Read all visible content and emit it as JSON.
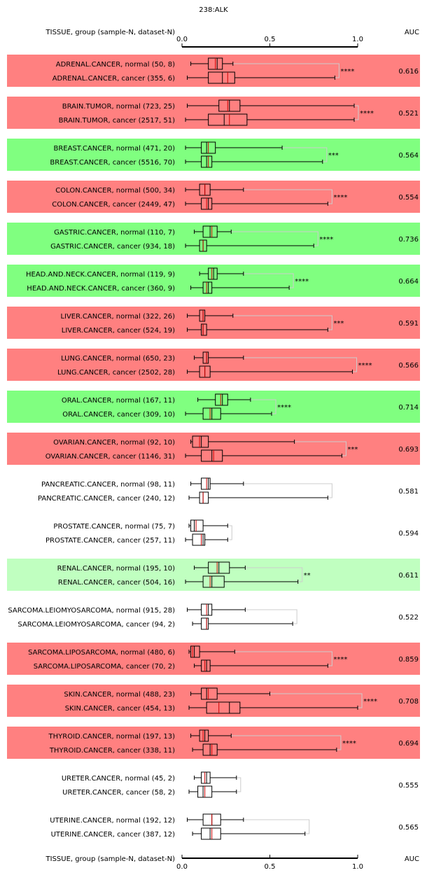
{
  "chart_data": {
    "type": "boxplot",
    "title": "238:ALK",
    "header_label": "TISSUE, group (sample-N, dataset-N)",
    "auc_label": "AUC",
    "x_ticks": [
      0.0,
      0.5,
      1.0
    ],
    "x_tick_labels": [
      "0.0",
      "0.5",
      "1.0"
    ],
    "xlim": [
      0,
      1
    ],
    "colors": {
      "red_panel": "#ff8080",
      "green_panel": "#80ff80",
      "lightgreen_panel": "#c0ffc0",
      "white_panel": "#ffffff",
      "box_fill": "#ffffff",
      "median": "#cc0000",
      "bracket": "#cccccc"
    },
    "groups": [
      {
        "tissue": "ADRENAL.CANCER",
        "color": "red",
        "significance": "****",
        "auc": "0.616",
        "normal": {
          "label": "ADRENAL.CANCER, normal (50, 8)",
          "min": 0.05,
          "q1": 0.15,
          "median": 0.2,
          "q3": 0.23,
          "max": 0.29,
          "mean": 0.19
        },
        "cancer": {
          "label": "ADRENAL.CANCER, cancer (355, 6)",
          "min": 0.03,
          "q1": 0.15,
          "median": 0.23,
          "q3": 0.3,
          "max": 0.87,
          "mean": 0.26
        }
      },
      {
        "tissue": "BRAIN.TUMOR",
        "color": "red",
        "significance": "****",
        "auc": "0.521",
        "normal": {
          "label": "BRAIN.TUMOR, normal (723, 25)",
          "min": 0.03,
          "q1": 0.21,
          "median": 0.27,
          "q3": 0.33,
          "max": 0.98,
          "mean": 0.26
        },
        "cancer": {
          "label": "BRAIN.TUMOR, cancer (2517, 51)",
          "min": 0.02,
          "q1": 0.15,
          "median": 0.24,
          "q3": 0.37,
          "max": 0.98,
          "mean": 0.27
        }
      },
      {
        "tissue": "BREAST.CANCER",
        "color": "green",
        "significance": "***",
        "auc": "0.564",
        "normal": {
          "label": "BREAST.CANCER, normal (471, 20)",
          "min": 0.02,
          "q1": 0.11,
          "median": 0.14,
          "q3": 0.19,
          "max": 0.57,
          "mean": 0.15
        },
        "cancer": {
          "label": "BREAST.CANCER, cancer (5516, 70)",
          "min": 0.02,
          "q1": 0.11,
          "median": 0.14,
          "q3": 0.17,
          "max": 0.8,
          "mean": 0.15
        }
      },
      {
        "tissue": "COLON.CANCER",
        "color": "red",
        "significance": "****",
        "auc": "0.554",
        "normal": {
          "label": "COLON.CANCER, normal (500, 34)",
          "min": 0.02,
          "q1": 0.1,
          "median": 0.13,
          "q3": 0.16,
          "max": 0.35,
          "mean": 0.13
        },
        "cancer": {
          "label": "COLON.CANCER, cancer (2449, 47)",
          "min": 0.02,
          "q1": 0.11,
          "median": 0.15,
          "q3": 0.17,
          "max": 0.83,
          "mean": 0.14
        }
      },
      {
        "tissue": "GASTRIC.CANCER",
        "color": "green",
        "significance": "****",
        "auc": "0.736",
        "normal": {
          "label": "GASTRIC.CANCER, normal (110, 7)",
          "min": 0.07,
          "q1": 0.12,
          "median": 0.16,
          "q3": 0.2,
          "max": 0.28,
          "mean": 0.17
        },
        "cancer": {
          "label": "GASTRIC.CANCER, cancer (934, 18)",
          "min": 0.02,
          "q1": 0.1,
          "median": 0.12,
          "q3": 0.14,
          "max": 0.75,
          "mean": 0.12
        }
      },
      {
        "tissue": "HEAD.AND.NECK.CANCER",
        "color": "green",
        "significance": "****",
        "auc": "0.664",
        "normal": {
          "label": "HEAD.AND.NECK.CANCER, normal (119, 9)",
          "min": 0.1,
          "q1": 0.15,
          "median": 0.18,
          "q3": 0.2,
          "max": 0.35,
          "mean": 0.17
        },
        "cancer": {
          "label": "HEAD.AND.NECK.CANCER, cancer (360, 9)",
          "min": 0.05,
          "q1": 0.12,
          "median": 0.15,
          "q3": 0.17,
          "max": 0.61,
          "mean": 0.14
        }
      },
      {
        "tissue": "LIVER.CANCER",
        "color": "red",
        "significance": "***",
        "auc": "0.591",
        "normal": {
          "label": "LIVER.CANCER, normal (322, 26)",
          "min": 0.03,
          "q1": 0.1,
          "median": 0.12,
          "q3": 0.13,
          "max": 0.29,
          "mean": 0.12
        },
        "cancer": {
          "label": "LIVER.CANCER, cancer (524, 19)",
          "min": 0.03,
          "q1": 0.11,
          "median": 0.12,
          "q3": 0.14,
          "max": 0.83,
          "mean": 0.12
        }
      },
      {
        "tissue": "LUNG.CANCER",
        "color": "red",
        "significance": "****",
        "auc": "0.566",
        "normal": {
          "label": "LUNG.CANCER, normal (650, 23)",
          "min": 0.07,
          "q1": 0.12,
          "median": 0.14,
          "q3": 0.15,
          "max": 0.35,
          "mean": 0.14
        },
        "cancer": {
          "label": "LUNG.CANCER, cancer (2502, 28)",
          "min": 0.03,
          "q1": 0.1,
          "median": 0.13,
          "q3": 0.16,
          "max": 0.97,
          "mean": 0.13
        }
      },
      {
        "tissue": "ORAL.CANCER",
        "color": "green",
        "significance": "****",
        "auc": "0.714",
        "normal": {
          "label": "ORAL.CANCER, normal (167, 11)",
          "min": 0.09,
          "q1": 0.19,
          "median": 0.23,
          "q3": 0.26,
          "max": 0.39,
          "mean": 0.22
        },
        "cancer": {
          "label": "ORAL.CANCER, cancer (309, 10)",
          "min": 0.02,
          "q1": 0.12,
          "median": 0.17,
          "q3": 0.22,
          "max": 0.51,
          "mean": 0.16
        }
      },
      {
        "tissue": "OVARIAN.CANCER",
        "color": "red",
        "significance": "***",
        "auc": "0.693",
        "normal": {
          "label": "OVARIAN.CANCER, normal (92, 10)",
          "min": 0.05,
          "q1": 0.06,
          "median": 0.11,
          "q3": 0.15,
          "max": 0.64,
          "mean": 0.1
        },
        "cancer": {
          "label": "OVARIAN.CANCER, cancer (1146, 31)",
          "min": 0.02,
          "q1": 0.11,
          "median": 0.17,
          "q3": 0.23,
          "max": 0.91,
          "mean": 0.18
        }
      },
      {
        "tissue": "PANCREATIC.CANCER",
        "color": "white",
        "significance": "",
        "auc": "0.581",
        "normal": {
          "label": "PANCREATIC.CANCER, normal (98, 11)",
          "min": 0.05,
          "q1": 0.11,
          "median": 0.15,
          "q3": 0.16,
          "max": 0.35,
          "mean": 0.14
        },
        "cancer": {
          "label": "PANCREATIC.CANCER, cancer (240, 12)",
          "min": 0.04,
          "q1": 0.1,
          "median": 0.12,
          "q3": 0.15,
          "max": 0.83,
          "mean": 0.12
        }
      },
      {
        "tissue": "PROSTATE.CANCER",
        "color": "white",
        "significance": "",
        "auc": "0.594",
        "normal": {
          "label": "PROSTATE.CANCER, normal (75, 7)",
          "min": 0.04,
          "q1": 0.05,
          "median": 0.07,
          "q3": 0.12,
          "max": 0.26,
          "mean": 0.08
        },
        "cancer": {
          "label": "PROSTATE.CANCER, cancer (257, 11)",
          "min": 0.02,
          "q1": 0.06,
          "median": 0.12,
          "q3": 0.13,
          "max": 0.26,
          "mean": 0.11
        }
      },
      {
        "tissue": "RENAL.CANCER",
        "color": "lightgreen",
        "significance": "**",
        "auc": "0.611",
        "normal": {
          "label": "RENAL.CANCER, normal (195, 10)",
          "min": 0.07,
          "q1": 0.15,
          "median": 0.21,
          "q3": 0.27,
          "max": 0.36,
          "mean": 0.2
        },
        "cancer": {
          "label": "RENAL.CANCER, cancer (504, 16)",
          "min": 0.02,
          "q1": 0.12,
          "median": 0.17,
          "q3": 0.24,
          "max": 0.66,
          "mean": 0.16
        }
      },
      {
        "tissue": "SARCOMA.LEIOMYOSARCOMA",
        "color": "white",
        "significance": "",
        "auc": "0.522",
        "normal": {
          "label": "SARCOMA.LEIOMYOSARCOMA, normal (915, 28)",
          "min": 0.03,
          "q1": 0.11,
          "median": 0.15,
          "q3": 0.17,
          "max": 0.36,
          "mean": 0.14
        },
        "cancer": {
          "label": "SARCOMA.LEIOMYOSARCOMA, cancer (94, 2)",
          "min": 0.06,
          "q1": 0.11,
          "median": 0.14,
          "q3": 0.15,
          "max": 0.63,
          "mean": 0.14
        }
      },
      {
        "tissue": "SARCOMA.LIPOSARCOMA",
        "color": "red",
        "significance": "****",
        "auc": "0.859",
        "normal": {
          "label": "SARCOMA.LIPOSARCOMA, normal (480, 6)",
          "min": 0.04,
          "q1": 0.05,
          "median": 0.07,
          "q3": 0.1,
          "max": 0.3,
          "mean": 0.06
        },
        "cancer": {
          "label": "SARCOMA.LIPOSARCOMA, cancer (70, 2)",
          "min": 0.07,
          "q1": 0.11,
          "median": 0.14,
          "q3": 0.16,
          "max": 0.83,
          "mean": 0.13
        }
      },
      {
        "tissue": "SKIN.CANCER",
        "color": "red",
        "significance": "****",
        "auc": "0.708",
        "normal": {
          "label": "SKIN.CANCER, normal (488, 23)",
          "min": 0.05,
          "q1": 0.11,
          "median": 0.14,
          "q3": 0.2,
          "max": 0.5,
          "mean": 0.15
        },
        "cancer": {
          "label": "SKIN.CANCER, cancer (454, 13)",
          "min": 0.04,
          "q1": 0.14,
          "median": 0.27,
          "q3": 0.33,
          "max": 1.0,
          "mean": 0.21
        }
      },
      {
        "tissue": "THYROID.CANCER",
        "color": "red",
        "significance": "****",
        "auc": "0.694",
        "normal": {
          "label": "THYROID.CANCER, normal (197, 13)",
          "min": 0.05,
          "q1": 0.1,
          "median": 0.13,
          "q3": 0.15,
          "max": 0.28,
          "mean": 0.12
        },
        "cancer": {
          "label": "THYROID.CANCER, cancer (338, 11)",
          "min": 0.06,
          "q1": 0.12,
          "median": 0.16,
          "q3": 0.2,
          "max": 0.88,
          "mean": 0.17
        }
      },
      {
        "tissue": "URETER.CANCER",
        "color": "white",
        "significance": "",
        "auc": "0.555",
        "normal": {
          "label": "URETER.CANCER, normal (45, 2)",
          "min": 0.07,
          "q1": 0.11,
          "median": 0.14,
          "q3": 0.16,
          "max": 0.31,
          "mean": 0.13
        },
        "cancer": {
          "label": "URETER.CANCER, cancer (58, 2)",
          "min": 0.04,
          "q1": 0.09,
          "median": 0.12,
          "q3": 0.17,
          "max": 0.31,
          "mean": 0.13
        }
      },
      {
        "tissue": "UTERINE.CANCER",
        "color": "white",
        "significance": "",
        "auc": "0.565",
        "normal": {
          "label": "UTERINE.CANCER, normal (192, 12)",
          "min": 0.03,
          "q1": 0.12,
          "median": 0.17,
          "q3": 0.22,
          "max": 0.35,
          "mean": 0.17
        },
        "cancer": {
          "label": "UTERINE.CANCER, cancer (387, 12)",
          "min": 0.06,
          "q1": 0.11,
          "median": 0.16,
          "q3": 0.22,
          "max": 0.7,
          "mean": 0.17
        }
      }
    ]
  }
}
